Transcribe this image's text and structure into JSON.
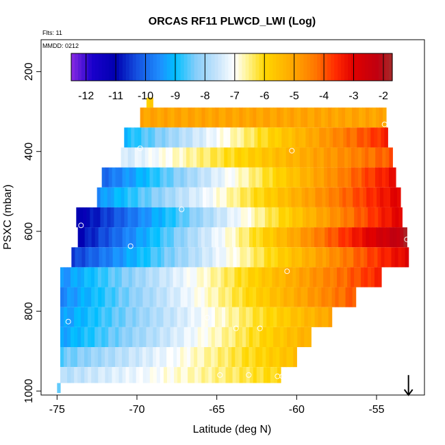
{
  "chart_data": {
    "type": "heatmap",
    "title": "ORCAS RF11 PLWCD_LWI (Log)",
    "note_flights": "Flts: 11",
    "note_date": "MMDD: 0212",
    "xlabel": "Latitude (deg N)",
    "ylabel": "PSXC (mbar)",
    "xlim": [
      -76,
      -52
    ],
    "ylim": [
      1010,
      120
    ],
    "y_reversed": true,
    "x_ticks": [
      -75,
      -70,
      -65,
      -60,
      -55
    ],
    "x_tick_labels": [
      "-75",
      "-70",
      "-65",
      "-60",
      "-55"
    ],
    "y_ticks": [
      200,
      400,
      600,
      800,
      1000
    ],
    "y_tick_labels": [
      "200",
      "400",
      "600",
      "800",
      "1000"
    ],
    "grid": false,
    "colorbar": {
      "placement": "top-inside",
      "range": [
        -12.5,
        -1.7
      ],
      "ticks": [
        -12,
        -11,
        -10,
        -9,
        -8,
        -7,
        -6,
        -5,
        -4,
        -3,
        -2
      ],
      "tick_labels": [
        "-12",
        "-11",
        "-10",
        "-9",
        "-8",
        "-7",
        "-6",
        "-5",
        "-4",
        "-3",
        "-2"
      ],
      "stops": [
        {
          "v": -12.5,
          "color": "#8a2be2"
        },
        {
          "v": -11.8,
          "color": "#1a00cc"
        },
        {
          "v": -11.0,
          "color": "#0000b0"
        },
        {
          "v": -10.3,
          "color": "#1450e0"
        },
        {
          "v": -9.5,
          "color": "#1e90ff"
        },
        {
          "v": -9.0,
          "color": "#00bfff"
        },
        {
          "v": -8.3,
          "color": "#87cefa"
        },
        {
          "v": -7.6,
          "color": "#c6e4fb"
        },
        {
          "v": -7.0,
          "color": "#ffffff"
        },
        {
          "v": -6.6,
          "color": "#fff59a"
        },
        {
          "v": -6.0,
          "color": "#ffd700"
        },
        {
          "v": -5.0,
          "color": "#ffa500"
        },
        {
          "v": -4.3,
          "color": "#ff7800"
        },
        {
          "v": -3.6,
          "color": "#ff2a00"
        },
        {
          "v": -3.0,
          "color": "#e00000"
        },
        {
          "v": -2.2,
          "color": "#c00010"
        },
        {
          "v": -1.7,
          "color": "#a52a2a"
        }
      ]
    },
    "bands": [
      {
        "p0": 265,
        "p1": 290,
        "lat0": -69.4,
        "lat1": -69.0,
        "v0": -5.9,
        "v1": -5.9
      },
      {
        "p0": 290,
        "p1": 340,
        "lat0": -69.8,
        "lat1": -54.4,
        "v0": -5.0,
        "v1": -5.0
      },
      {
        "p0": 340,
        "p1": 390,
        "lat0": -70.8,
        "lat1": -54.3,
        "v0": -9.0,
        "v1": -3.5
      },
      {
        "p0": 390,
        "p1": 440,
        "lat0": -71.0,
        "lat1": -54.0,
        "v0": -7.5,
        "v1": -4.0
      },
      {
        "p0": 440,
        "p1": 490,
        "lat0": -72.2,
        "lat1": -53.8,
        "v0": -10.0,
        "v1": -3.2
      },
      {
        "p0": 490,
        "p1": 540,
        "lat0": -72.5,
        "lat1": -53.5,
        "v0": -9.5,
        "v1": -3.0
      },
      {
        "p0": 540,
        "p1": 590,
        "lat0": -73.8,
        "lat1": -53.4,
        "v0": -11.2,
        "v1": -3.0
      },
      {
        "p0": 590,
        "p1": 640,
        "lat0": -73.7,
        "lat1": -53.1,
        "v0": -11.0,
        "v1": -2.0
      },
      {
        "p0": 640,
        "p1": 690,
        "lat0": -74.1,
        "lat1": -53.0,
        "v0": -10.5,
        "v1": -3.0
      },
      {
        "p0": 690,
        "p1": 740,
        "lat0": -74.8,
        "lat1": -54.7,
        "v0": -9.5,
        "v1": -3.5
      },
      {
        "p0": 740,
        "p1": 790,
        "lat0": -74.8,
        "lat1": -56.3,
        "v0": -9.6,
        "v1": -4.0
      },
      {
        "p0": 790,
        "p1": 840,
        "lat0": -74.8,
        "lat1": -57.8,
        "v0": -9.4,
        "v1": -5.0
      },
      {
        "p0": 840,
        "p1": 890,
        "lat0": -74.8,
        "lat1": -59.1,
        "v0": -9.3,
        "v1": -5.2
      },
      {
        "p0": 890,
        "p1": 940,
        "lat0": -74.8,
        "lat1": -60.0,
        "v0": -8.5,
        "v1": -5.5
      },
      {
        "p0": 940,
        "p1": 980,
        "lat0": -74.8,
        "lat1": -61.0,
        "v0": -7.8,
        "v1": -6.0
      },
      {
        "p0": 980,
        "p1": 1005,
        "lat0": -75.0,
        "lat1": -74.8,
        "v0": -8.5,
        "v1": -8.5
      }
    ],
    "markers": [
      {
        "lat": -54.5,
        "p": 332
      },
      {
        "lat": -69.8,
        "p": 392
      },
      {
        "lat": -60.3,
        "p": 398
      },
      {
        "lat": -73.5,
        "p": 585
      },
      {
        "lat": -67.2,
        "p": 545
      },
      {
        "lat": -70.4,
        "p": 637
      },
      {
        "lat": -53.1,
        "p": 620
      },
      {
        "lat": -53.1,
        "p": 705
      },
      {
        "lat": -60.6,
        "p": 700
      },
      {
        "lat": -75.0,
        "p": 760
      },
      {
        "lat": -74.3,
        "p": 826
      },
      {
        "lat": -65.6,
        "p": 816
      },
      {
        "lat": -63.8,
        "p": 843
      },
      {
        "lat": -62.3,
        "p": 843
      },
      {
        "lat": -64.8,
        "p": 960
      },
      {
        "lat": -63.0,
        "p": 960
      },
      {
        "lat": -61.2,
        "p": 963
      },
      {
        "lat": -60.9,
        "p": 963
      }
    ],
    "arrow": {
      "lat": -53.0,
      "p_top": 960,
      "p_bottom": 1010
    }
  }
}
